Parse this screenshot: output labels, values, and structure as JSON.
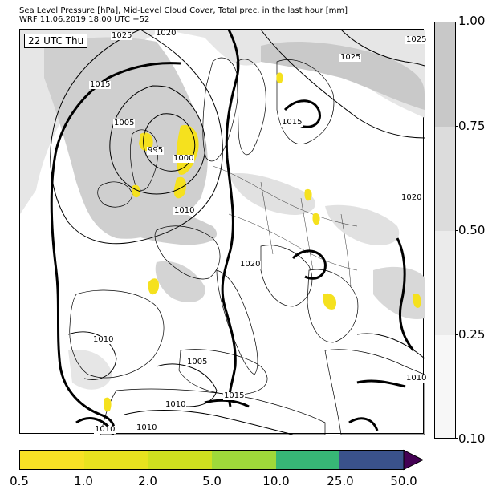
{
  "header": {
    "line1": "Sea Level Pressure [hPa], Mid-Level Cloud Cover, Total prec. in the last hour [mm]",
    "line2": "WRF 11.06.2019 18:00 UTC +52"
  },
  "map": {
    "time_label": "22 UTC Thu",
    "isobar_labels": [
      "1025",
      "1020",
      "1025",
      "1025",
      "1015",
      "1005",
      "995",
      "1000",
      "1015",
      "1010",
      "1020",
      "1020",
      "1010",
      "1005",
      "1015",
      "1010",
      "1010",
      "1010",
      "1010"
    ],
    "colors": {
      "coast": "#000000",
      "cloud_light": "#e6e6e6",
      "cloud_mid": "#cfcfcf",
      "cloud_dark": "#bdbdbd",
      "precip": "#f5e11e"
    }
  },
  "cloud_colorbar": {
    "ticks": [
      "1.00",
      "0.75",
      "0.50",
      "0.25",
      "0.10"
    ],
    "colors": [
      "#c8c8c8",
      "#dcdcdc",
      "#ebebeb",
      "#f7f7f7"
    ]
  },
  "precip_colorbar": {
    "ticks": [
      "0.5",
      "1.0",
      "2.0",
      "5.0",
      "10.0",
      "25.0",
      "50.0"
    ],
    "colors": [
      "#f7e125",
      "#e8e21f",
      "#cfe01f",
      "#9fd93a",
      "#37b776",
      "#3a528b",
      "#440154"
    ]
  }
}
